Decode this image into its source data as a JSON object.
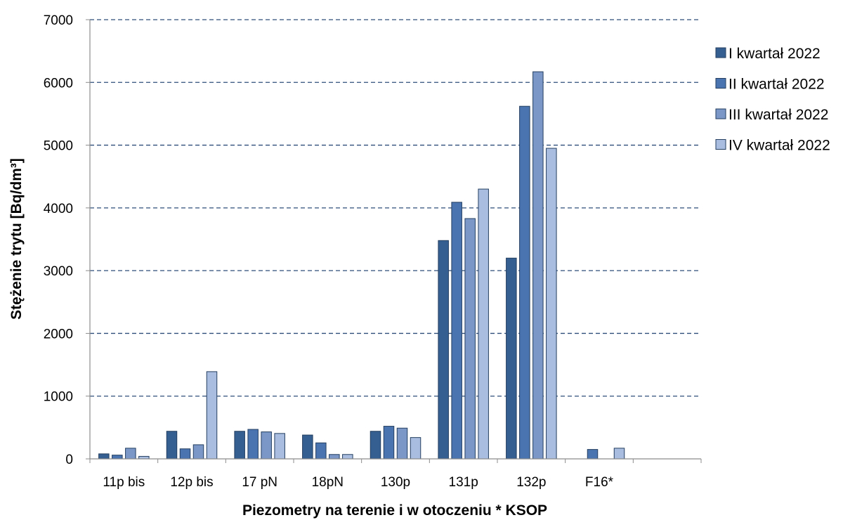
{
  "chart_data": {
    "type": "bar",
    "title": "",
    "xlabel": "Piezometry na terenie i w otoczeniu * KSOP",
    "ylabel": "Stężenie trytu [Bq/dm³]",
    "ylim": [
      0,
      7000
    ],
    "yticks": [
      0,
      1000,
      2000,
      3000,
      4000,
      5000,
      6000,
      7000
    ],
    "categories": [
      "11p bis",
      "12p  bis",
      "17 pN",
      "18pN",
      "130p",
      "131p",
      "132p",
      "F16*",
      ""
    ],
    "series": [
      {
        "name": "I kwartał 2022",
        "color": "#365f91",
        "values": [
          80,
          440,
          440,
          380,
          440,
          3480,
          3200,
          null,
          null
        ]
      },
      {
        "name": "II kwartał 2022",
        "color": "#4a74b0",
        "values": [
          60,
          160,
          470,
          255,
          520,
          4090,
          5620,
          150,
          null
        ]
      },
      {
        "name": "III kwartał 2022",
        "color": "#7a97c8",
        "values": [
          170,
          225,
          430,
          70,
          490,
          3830,
          6170,
          null,
          null
        ]
      },
      {
        "name": "IV kwartał 2022",
        "color": "#a9bde0",
        "values": [
          40,
          1390,
          405,
          70,
          340,
          4300,
          4950,
          170,
          null
        ]
      }
    ],
    "grid": true,
    "grid_style": "dashed",
    "grid_color": "#2f4e79",
    "legend_position": "right"
  }
}
